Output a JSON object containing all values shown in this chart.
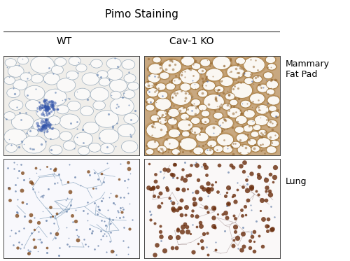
{
  "title": "Pimo Staining",
  "col_labels": [
    "WT",
    "Cav-1 KO"
  ],
  "row_labels": [
    "Mammary\nFat Pad",
    "Lung"
  ],
  "title_fontsize": 11,
  "col_label_fontsize": 10,
  "row_label_fontsize": 9,
  "figure_bg": "#ffffff",
  "line_color": "#333333",
  "panels": {
    "top_left_bg": "#e8e4e0",
    "top_right_bg": "#d4b896",
    "bottom_left_bg": "#f0f0f5",
    "bottom_right_bg": "#f5f0ee"
  }
}
